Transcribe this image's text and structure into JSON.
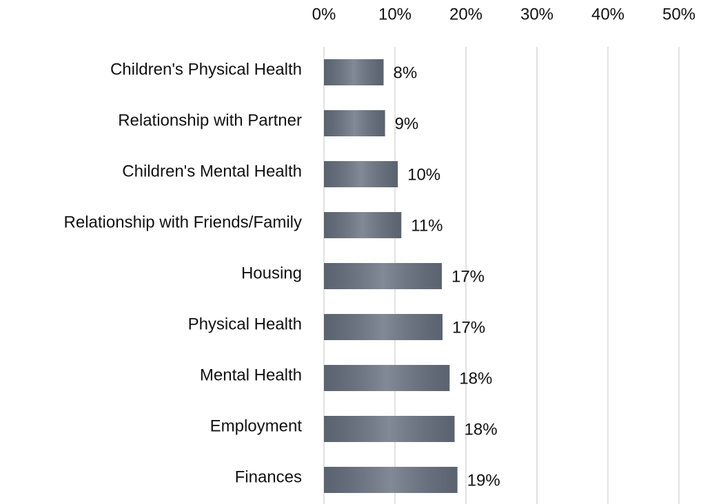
{
  "chart_data": {
    "type": "hbar",
    "categories": [
      "Children's Physical Health",
      "Relationship with Partner",
      "Children's Mental Health",
      "Relationship with Friends/Family",
      "Housing",
      "Physical Health",
      "Mental Health",
      "Employment",
      "Finances"
    ],
    "values": [
      8.4,
      8.6,
      10.4,
      10.9,
      16.6,
      16.7,
      17.7,
      18.4,
      18.8
    ],
    "value_labels": [
      "8%",
      "9%",
      "10%",
      "11%",
      "17%",
      "17%",
      "18%",
      "18%",
      "19%"
    ],
    "color": "#67707f",
    "xlim": [
      0,
      50
    ],
    "xticks": [
      {
        "value": 0,
        "label": "0%"
      },
      {
        "value": 10,
        "label": "10%"
      },
      {
        "value": 20,
        "label": "20%"
      },
      {
        "value": 30,
        "label": "30%"
      },
      {
        "value": 40,
        "label": "40%"
      },
      {
        "value": 50,
        "label": "50%"
      }
    ],
    "grid": true
  }
}
